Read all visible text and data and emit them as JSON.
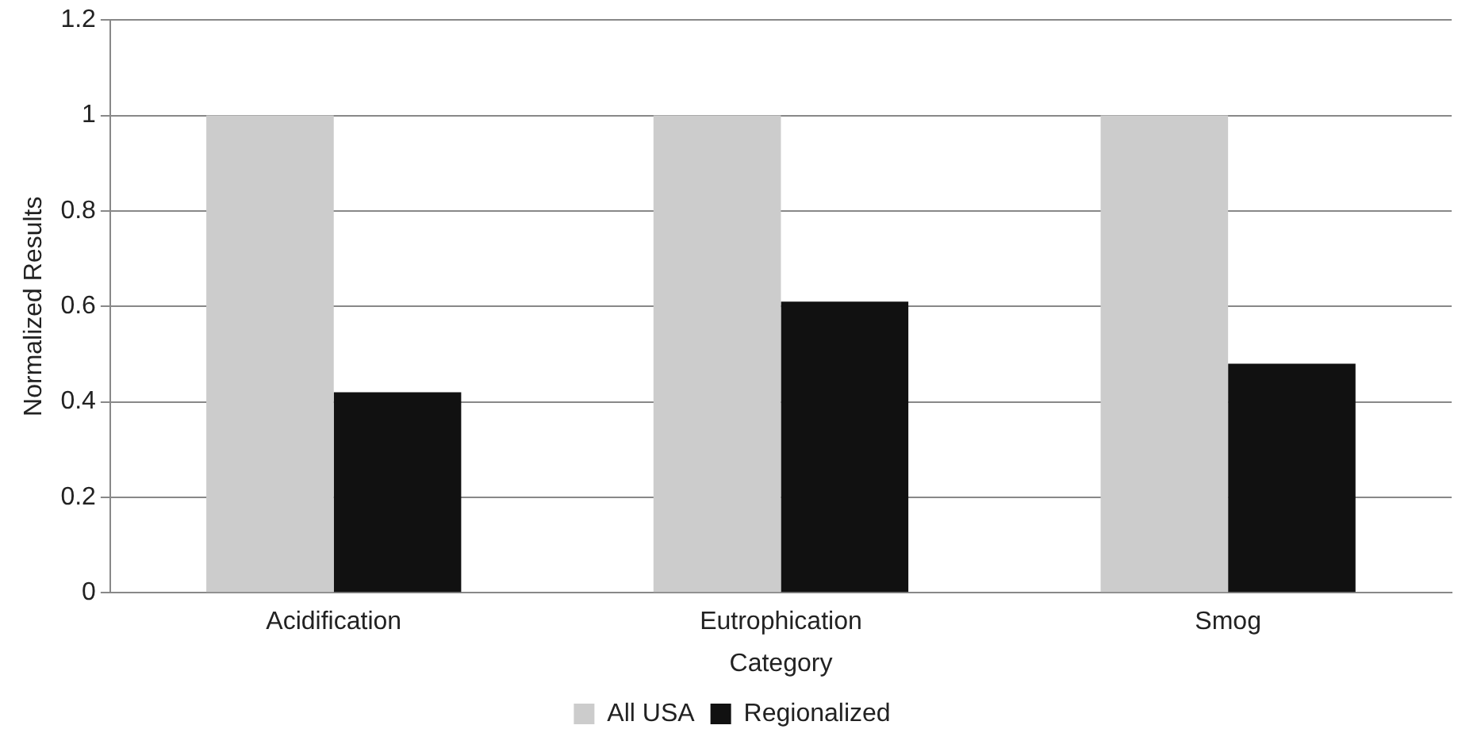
{
  "chart_data": {
    "type": "bar",
    "xlabel": "Category",
    "ylabel": "Normalized Results",
    "categories": [
      "Acidification",
      "Eutrophication",
      "Smog"
    ],
    "series": [
      {
        "name": "All USA",
        "color": "#cccccc",
        "values": [
          1,
          1,
          1
        ]
      },
      {
        "name": "Regionalized",
        "color": "#111111",
        "values": [
          0.42,
          0.61,
          0.48
        ]
      }
    ],
    "ylim": [
      0,
      1.2
    ],
    "yticks": [
      0,
      0.2,
      0.4,
      0.6,
      0.8,
      1,
      1.2
    ],
    "grid": "y",
    "legend": "bottom"
  }
}
